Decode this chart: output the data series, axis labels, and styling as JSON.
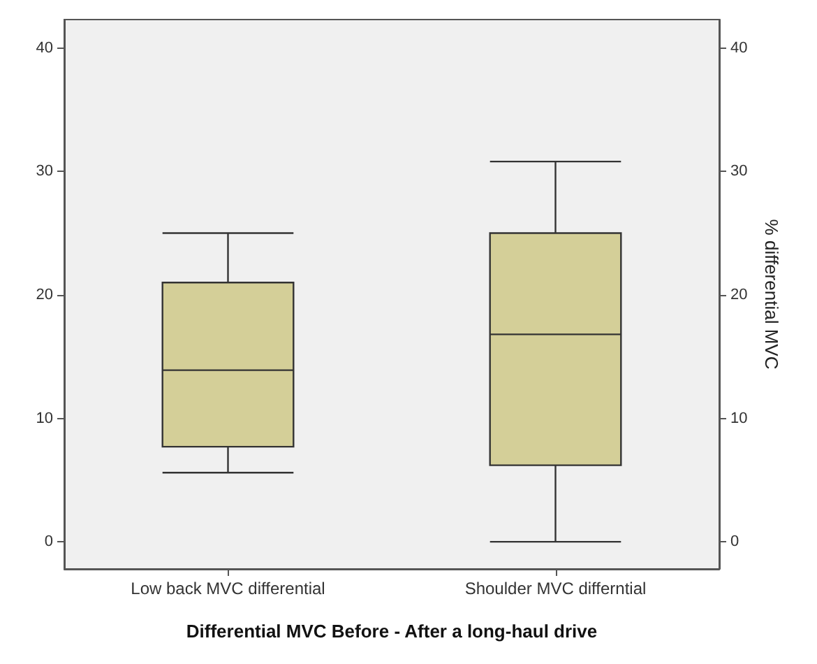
{
  "chart_data": {
    "type": "box",
    "xlabel": "Differential MVC Before - After a long-haul drive",
    "y2label": "% differential MVC",
    "categories": [
      "Low back MVC differential",
      "Shoulder MVC differntial"
    ],
    "series": [
      {
        "color": "#d4cf98",
        "boxes": [
          {
            "low": 5.6,
            "q1": 7.7,
            "median": 13.9,
            "q3": 21.0,
            "high": 25.0
          },
          {
            "low": 0,
            "q1": 6.2,
            "median": 16.8,
            "q3": 25.0,
            "high": 30.8
          }
        ]
      }
    ],
    "ylim": [
      -2.2,
      42.3
    ],
    "yticks": [
      0,
      10,
      20,
      30,
      40
    ],
    "y2lim": [
      -2.2,
      42.3
    ],
    "y2ticks": [
      0,
      10,
      20,
      30,
      40
    ],
    "grid": false
  }
}
